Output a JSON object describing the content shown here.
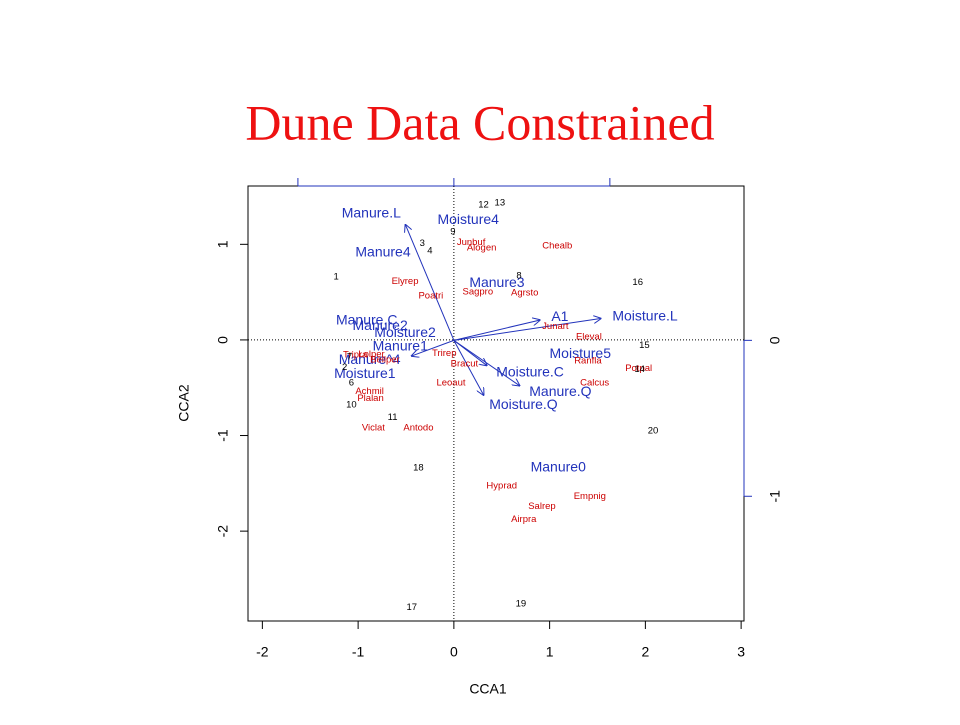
{
  "chart_data": {
    "type": "cca-triplot",
    "title": "Dune Data Constrained",
    "xlabel": "CCA1",
    "ylabel": "CCA2",
    "xlim": [
      -2.15,
      3.03
    ],
    "xticks": [
      -2,
      -1,
      0,
      1,
      2,
      3
    ],
    "ylim": [
      -2.94,
      1.61
    ],
    "yticks": [
      -2,
      -1,
      0,
      1
    ],
    "x2lim": [
      -1.32,
      1.86
    ],
    "x2ticks": [
      -1,
      0,
      1
    ],
    "y2lim": [
      -1.8,
      0.99
    ],
    "y2ticks": [
      -1,
      0
    ],
    "sites": {
      "color": "#000000",
      "labels": [
        "1",
        "2",
        "3",
        "4",
        "6",
        "7",
        "8",
        "9",
        "10",
        "11",
        "12",
        "13",
        "14",
        "15",
        "16",
        "17",
        "18",
        "19",
        "20"
      ],
      "x": [
        -1.23,
        -1.14,
        -0.33,
        -0.25,
        -1.07,
        -1.09,
        0.68,
        -0.01,
        -1.07,
        -0.64,
        0.31,
        0.48,
        1.94,
        1.99,
        1.92,
        -0.44,
        -0.37,
        0.7,
        2.08
      ],
      "y": [
        0.66,
        -0.29,
        1.01,
        0.93,
        -0.45,
        -0.18,
        0.67,
        1.13,
        -0.68,
        -0.81,
        1.41,
        1.43,
        -0.31,
        -0.06,
        0.6,
        -2.8,
        -1.34,
        -2.76,
        -0.95
      ]
    },
    "species": {
      "color": "#cc0000",
      "labels": [
        "Chealb",
        "Alogen",
        "Junbuf",
        "Elyrep",
        "Poatri",
        "Sagpro",
        "Agrsto",
        "Junart",
        "Eleval",
        "Ranfla",
        "Potpal",
        "Calcus",
        "Trirep",
        "Bracut",
        "Leoaut",
        "Tripra",
        "Lolper",
        "Bellper",
        "Achmil",
        "Plalan",
        "Viclat",
        "Antodo",
        "Hyprad",
        "Empnig",
        "Salrep",
        "Airpra"
      ],
      "x": [
        1.08,
        0.29,
        0.18,
        -0.51,
        -0.24,
        0.25,
        0.74,
        1.06,
        1.41,
        1.4,
        1.93,
        1.47,
        -0.1,
        0.11,
        -0.03,
        -1.03,
        -0.86,
        -0.72,
        -0.88,
        -0.87,
        -0.84,
        -0.37,
        0.5,
        1.42,
        0.92,
        0.73
      ],
      "y": [
        0.98,
        0.96,
        1.02,
        0.61,
        0.46,
        0.5,
        0.49,
        0.14,
        0.03,
        -0.22,
        -0.3,
        -0.45,
        -0.14,
        -0.25,
        -0.45,
        -0.16,
        -0.15,
        -0.21,
        -0.54,
        -0.61,
        -0.92,
        -0.92,
        -1.53,
        -1.64,
        -1.74,
        -1.88
      ]
    },
    "centroids": {
      "color": "#2233bb",
      "labels": [
        "Moisture4",
        "Manure4",
        "Manure3",
        "Manure.C",
        "Manure2",
        "Moisture2",
        "Manure1",
        "Moisture5",
        "Moisture1",
        "Manure0"
      ],
      "x": [
        0.15,
        -0.74,
        0.45,
        -0.91,
        -0.77,
        -0.51,
        -0.56,
        1.32,
        -0.93,
        1.09
      ],
      "y": [
        1.25,
        0.91,
        0.59,
        0.2,
        0.14,
        0.07,
        -0.07,
        -0.15,
        -0.36,
        -1.34
      ]
    },
    "arrows": {
      "color": "#2233bb",
      "axis": "y2",
      "labels": [
        "Manure.L",
        "A1",
        "Moisture.L",
        "Moisture.C",
        "Manure.Q",
        "Moisture.Q",
        "Manure^4"
      ],
      "x": [
        -0.31,
        0.55,
        0.94,
        0.21,
        0.42,
        0.19,
        -0.27
      ],
      "y": [
        0.74,
        0.13,
        0.14,
        -0.16,
        -0.29,
        -0.35,
        -0.1
      ]
    }
  }
}
